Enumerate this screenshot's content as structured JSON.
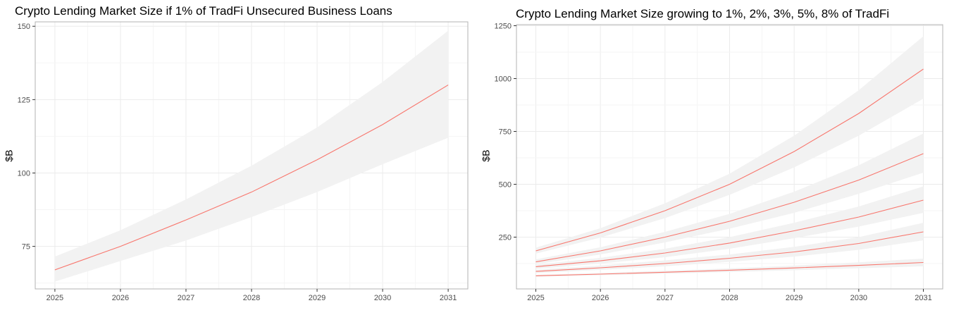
{
  "chart_data": [
    {
      "type": "line",
      "title": "Crypto Lending Market Size if 1% of TradFi Unsecured Business Loans",
      "xlabel": "",
      "ylabel": "$B",
      "x": [
        2025,
        2026,
        2027,
        2028,
        2029,
        2030,
        2031
      ],
      "xlim": [
        2024.7,
        2031.3
      ],
      "ylim": [
        60.5,
        151.5
      ],
      "yticks": [
        75,
        100,
        125,
        150
      ],
      "series": [
        {
          "values": [
            67,
            75,
            84,
            93.5,
            104.5,
            116.5,
            130
          ],
          "band_low": [
            63,
            70,
            77,
            85,
            93.5,
            103,
            112
          ],
          "band_high": [
            71.5,
            80.5,
            91,
            102.5,
            115.5,
            131,
            148.5
          ],
          "color": "#f8766d"
        }
      ],
      "band_color": "#f2f2f2",
      "grid": true,
      "legend": "none"
    },
    {
      "type": "line",
      "title": "Crypto Lending Market Size growing to 1%, 2%, 3%, 5%, 8% of TradFi",
      "xlabel": "",
      "ylabel": "$B",
      "x": [
        2025,
        2026,
        2027,
        2028,
        2029,
        2030,
        2031
      ],
      "xlim": [
        2024.7,
        2031.3
      ],
      "ylim": [
        5,
        1255
      ],
      "yticks": [
        250,
        500,
        750,
        1000,
        1250
      ],
      "series": [
        {
          "values": [
            67,
            75,
            84,
            93.5,
            104.5,
            116.5,
            130
          ],
          "band_low": [
            63,
            70,
            77,
            85,
            93.5,
            103,
            112
          ],
          "band_high": [
            71.5,
            80.5,
            91,
            102.5,
            115.5,
            131,
            148.5
          ]
        },
        {
          "values": [
            88,
            105,
            125,
            150,
            180,
            220,
            275
          ],
          "band_low": [
            80,
            95,
            112,
            133,
            158,
            190,
            235
          ],
          "band_high": [
            96,
            116,
            140,
            168,
            204,
            250,
            318
          ]
        },
        {
          "values": [
            110,
            138,
            175,
            222,
            280,
            345,
            425
          ],
          "band_low": [
            100,
            125,
            155,
            195,
            245,
            300,
            365
          ],
          "band_high": [
            120,
            152,
            195,
            250,
            318,
            395,
            490
          ]
        },
        {
          "values": [
            133,
            185,
            250,
            325,
            415,
            520,
            645
          ],
          "band_low": [
            122,
            168,
            225,
            290,
            365,
            455,
            555
          ],
          "band_high": [
            145,
            202,
            275,
            360,
            465,
            590,
            740
          ]
        },
        {
          "values": [
            185,
            270,
            375,
            500,
            655,
            835,
            1045
          ],
          "band_low": [
            172,
            248,
            340,
            450,
            580,
            730,
            905
          ],
          "band_high": [
            200,
            292,
            410,
            550,
            730,
            945,
            1200
          ]
        }
      ],
      "line_color": "#f8766d",
      "band_color": "#f2f2f2",
      "grid": true,
      "legend": "none"
    }
  ]
}
